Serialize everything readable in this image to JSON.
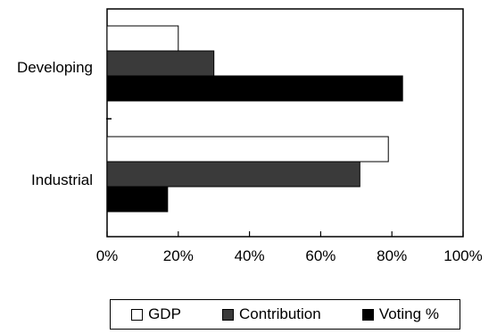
{
  "chart_data": {
    "type": "bar",
    "orientation": "horizontal",
    "categories": [
      "Developing",
      "Industrial"
    ],
    "series": [
      {
        "name": "GDP",
        "values": [
          20,
          79
        ],
        "color": "#ffffff"
      },
      {
        "name": "Contribution",
        "values": [
          30,
          71
        ],
        "color": "#3a3a3a"
      },
      {
        "name": "Voting %",
        "values": [
          83,
          17
        ],
        "color": "#000000"
      }
    ],
    "xlim": [
      0,
      100
    ],
    "xticks": [
      "0%",
      "20%",
      "40%",
      "60%",
      "80%",
      "100%"
    ],
    "grid": false,
    "legend_position": "bottom",
    "title": "",
    "xlabel": "",
    "ylabel": ""
  }
}
